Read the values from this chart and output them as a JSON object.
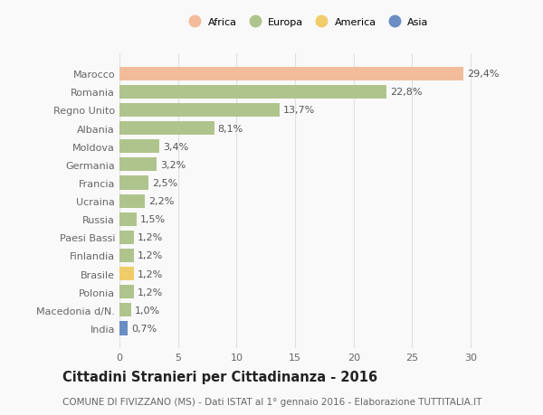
{
  "countries": [
    "Marocco",
    "Romania",
    "Regno Unito",
    "Albania",
    "Moldova",
    "Germania",
    "Francia",
    "Ucraina",
    "Russia",
    "Paesi Bassi",
    "Finlandia",
    "Brasile",
    "Polonia",
    "Macedonia d/N.",
    "India"
  ],
  "values": [
    29.4,
    22.8,
    13.7,
    8.1,
    3.4,
    3.2,
    2.5,
    2.2,
    1.5,
    1.2,
    1.2,
    1.2,
    1.2,
    1.0,
    0.7
  ],
  "labels": [
    "29,4%",
    "22,8%",
    "13,7%",
    "8,1%",
    "3,4%",
    "3,2%",
    "2,5%",
    "2,2%",
    "1,5%",
    "1,2%",
    "1,2%",
    "1,2%",
    "1,2%",
    "1,0%",
    "0,7%"
  ],
  "colors": [
    "#f2bc9b",
    "#afc48d",
    "#afc48d",
    "#afc48d",
    "#afc48d",
    "#afc48d",
    "#afc48d",
    "#afc48d",
    "#afc48d",
    "#afc48d",
    "#afc48d",
    "#f0cc6a",
    "#afc48d",
    "#afc48d",
    "#6b8ec4"
  ],
  "legend_labels": [
    "Africa",
    "Europa",
    "America",
    "Asia"
  ],
  "legend_colors": [
    "#f2bc9b",
    "#afc48d",
    "#f0cc6a",
    "#6b8ec4"
  ],
  "title": "Cittadini Stranieri per Cittadinanza - 2016",
  "subtitle": "COMUNE DI FIVIZZANO (MS) - Dati ISTAT al 1° gennaio 2016 - Elaborazione TUTTITALIA.IT",
  "xlim": [
    0,
    32
  ],
  "xticks": [
    0,
    5,
    10,
    15,
    20,
    25,
    30
  ],
  "bg_color": "#f9f9f9",
  "grid_color": "#e0e0e0",
  "bar_height": 0.75,
  "label_fontsize": 8,
  "tick_fontsize": 8,
  "title_fontsize": 10.5,
  "subtitle_fontsize": 7.5
}
